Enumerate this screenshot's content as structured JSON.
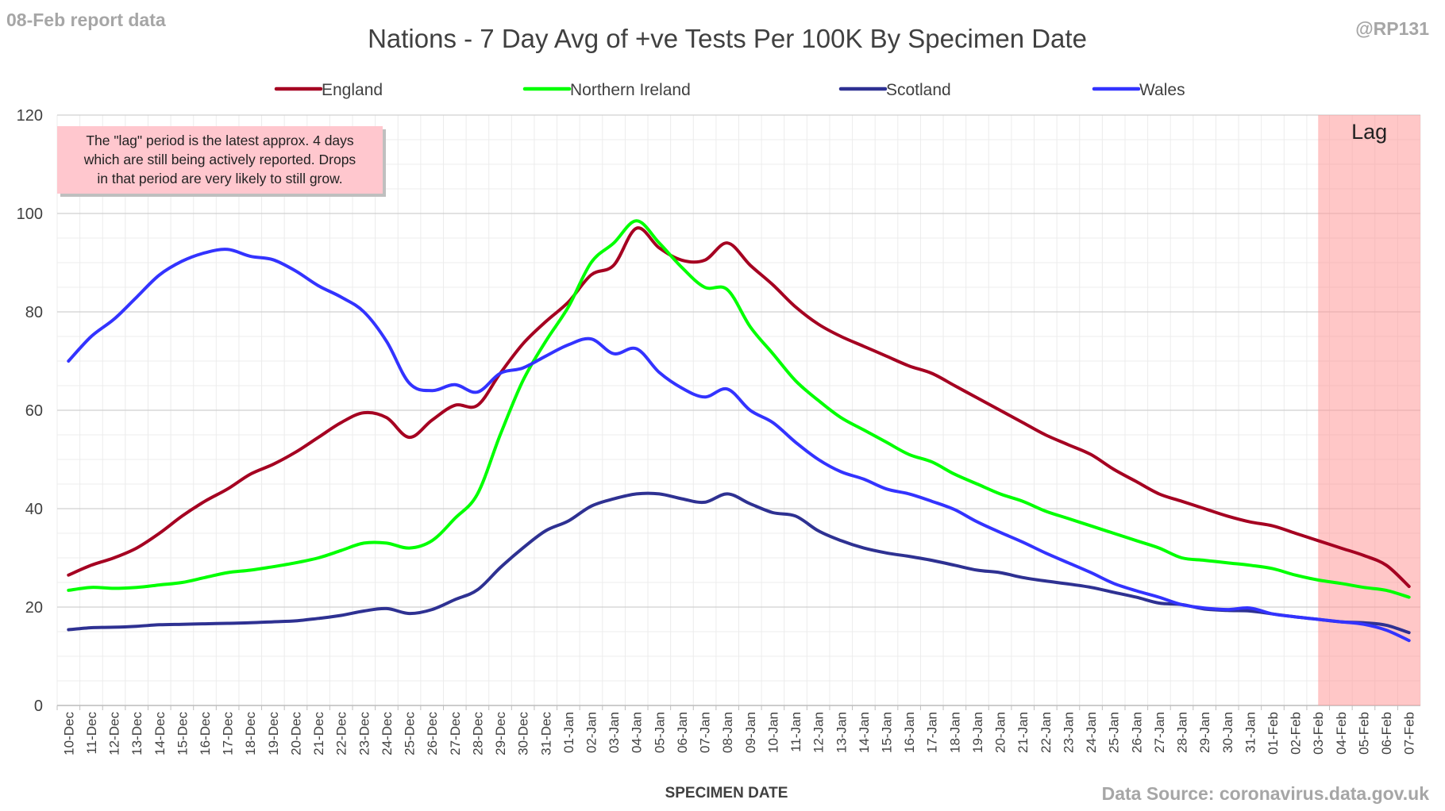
{
  "report_label": "08-Feb report data",
  "handle": "@RP131",
  "source": "Data Source: coronavirus.data.gov.uk",
  "note_lines": [
    "The \"lag\" period is the latest approx. 4 days",
    "which are still being actively reported.  Drops",
    "in that period are very likely to still grow."
  ],
  "lag_label": "Lag",
  "chart_data": {
    "type": "line",
    "title": "Nations - 7 Day Avg of +ve Tests Per 100K By Specimen Date",
    "xlabel": "SPECIMEN DATE",
    "ylabel": "",
    "ylim": [
      0,
      120
    ],
    "yticks": [
      0,
      20,
      40,
      60,
      80,
      100,
      120
    ],
    "grid": true,
    "legend_position": "top",
    "lag_range": [
      "03-Feb",
      "07-Feb"
    ],
    "categories": [
      "10-Dec",
      "11-Dec",
      "12-Dec",
      "13-Dec",
      "14-Dec",
      "15-Dec",
      "16-Dec",
      "17-Dec",
      "18-Dec",
      "19-Dec",
      "20-Dec",
      "21-Dec",
      "22-Dec",
      "23-Dec",
      "24-Dec",
      "25-Dec",
      "26-Dec",
      "27-Dec",
      "28-Dec",
      "29-Dec",
      "30-Dec",
      "31-Dec",
      "01-Jan",
      "02-Jan",
      "03-Jan",
      "04-Jan",
      "05-Jan",
      "06-Jan",
      "07-Jan",
      "08-Jan",
      "09-Jan",
      "10-Jan",
      "11-Jan",
      "12-Jan",
      "13-Jan",
      "14-Jan",
      "15-Jan",
      "16-Jan",
      "17-Jan",
      "18-Jan",
      "19-Jan",
      "20-Jan",
      "21-Jan",
      "22-Jan",
      "23-Jan",
      "24-Jan",
      "25-Jan",
      "26-Jan",
      "27-Jan",
      "28-Jan",
      "29-Jan",
      "30-Jan",
      "31-Jan",
      "01-Feb",
      "02-Feb",
      "03-Feb",
      "04-Feb",
      "05-Feb",
      "06-Feb",
      "07-Feb"
    ],
    "series": [
      {
        "name": "England",
        "color": "#a50021",
        "values": [
          26.5,
          28.5,
          30,
          32,
          35,
          38.5,
          41.5,
          44,
          47,
          49,
          51.5,
          54.5,
          57.5,
          59.5,
          58.5,
          54.5,
          58,
          61,
          61,
          67.5,
          73.5,
          78,
          82,
          87.5,
          89.5,
          97,
          93,
          90.5,
          90.5,
          94,
          89.5,
          85.5,
          81,
          77.5,
          75,
          73,
          71,
          69,
          67.5,
          65,
          62.5,
          60,
          57.5,
          55,
          53,
          51,
          48,
          45.5,
          43,
          41.5,
          40,
          38.5,
          37.3,
          36.5,
          35,
          33.5,
          32,
          30.5,
          28.5,
          24.2
        ]
      },
      {
        "name": "Northern Ireland",
        "color": "#00ff00",
        "values": [
          23.4,
          24,
          23.8,
          24,
          24.5,
          25,
          26,
          27,
          27.5,
          28.2,
          29,
          30,
          31.5,
          33,
          33,
          32,
          33.5,
          38,
          43,
          55,
          66,
          74,
          81,
          90,
          94,
          98.5,
          94,
          89,
          85,
          84.5,
          77,
          71.5,
          66,
          62,
          58.5,
          56,
          53.5,
          51,
          49.5,
          47,
          45,
          43,
          41.5,
          39.5,
          38,
          36.5,
          35,
          33.5,
          32,
          30,
          29.5,
          29,
          28.5,
          27.8,
          26.5,
          25.5,
          24.8,
          24,
          23.4,
          22
        ]
      },
      {
        "name": "Scotland",
        "color": "#2e3192",
        "values": [
          15.4,
          15.8,
          15.9,
          16.1,
          16.4,
          16.5,
          16.6,
          16.7,
          16.8,
          17,
          17.2,
          17.7,
          18.3,
          19.2,
          19.7,
          18.7,
          19.5,
          21.5,
          23.5,
          28,
          32,
          35.5,
          37.5,
          40.5,
          42,
          43,
          43,
          42,
          41.3,
          43,
          41,
          39.2,
          38.5,
          35.5,
          33.5,
          32,
          31,
          30.3,
          29.5,
          28.5,
          27.5,
          27,
          26,
          25.3,
          24.7,
          24,
          23,
          22,
          20.8,
          20.5,
          19.6,
          19.3,
          19.2,
          18.6,
          18,
          17.5,
          17,
          16.8,
          16.3,
          14.8
        ]
      },
      {
        "name": "Wales",
        "color": "#3333ff",
        "values": [
          70,
          75,
          78.5,
          83,
          87.5,
          90.3,
          92,
          92.7,
          91.3,
          90.6,
          88.3,
          85.3,
          83,
          80,
          74,
          65.5,
          64,
          65.2,
          63.7,
          67.5,
          68.6,
          71,
          73.3,
          74.5,
          71.5,
          72.5,
          67.7,
          64.5,
          62.7,
          64.3,
          60,
          57.5,
          53.5,
          50,
          47.5,
          46,
          44,
          43,
          41.5,
          39.8,
          37.3,
          35.2,
          33.2,
          31,
          29,
          27,
          24.8,
          23.3,
          22,
          20.5,
          19.8,
          19.5,
          19.8,
          18.6,
          18,
          17.5,
          17,
          16.5,
          15.3,
          13.2
        ]
      }
    ]
  }
}
